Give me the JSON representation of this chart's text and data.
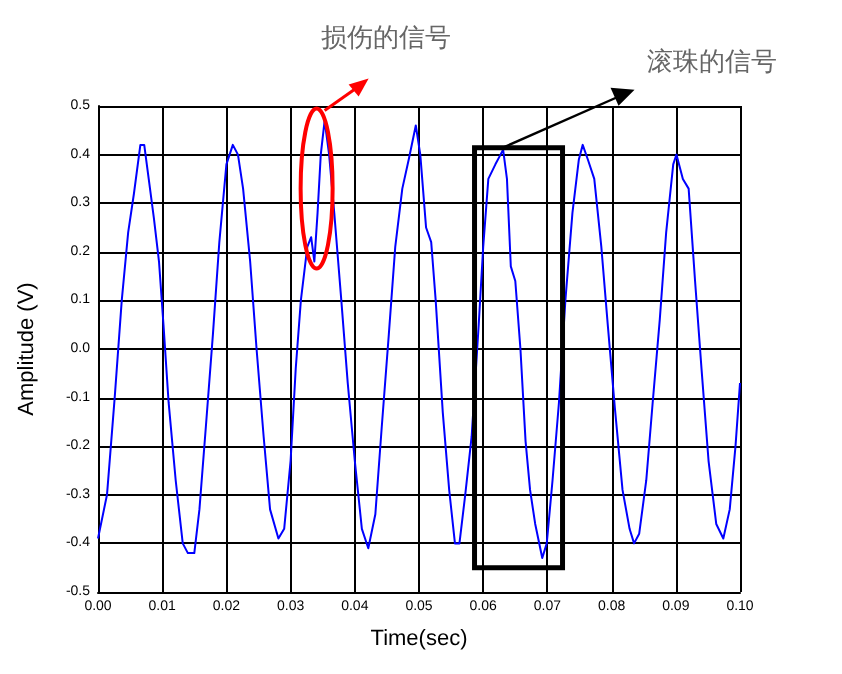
{
  "chart_data": {
    "type": "line",
    "xlabel": "Time(sec)",
    "ylabel": "Amplitude (V)",
    "color": "#0000ff",
    "x": [
      0,
      0.0014,
      0.0026,
      0.0037,
      0.0047,
      0.0056,
      0.0066,
      0.0072,
      0.0079,
      0.0087,
      0.0095,
      0.0102,
      0.011,
      0.0121,
      0.0132,
      0.014,
      0.015,
      0.0158,
      0.0168,
      0.0179,
      0.0189,
      0.02,
      0.021,
      0.0218,
      0.0226,
      0.0237,
      0.0247,
      0.0258,
      0.0268,
      0.0281,
      0.029,
      0.03,
      0.0308,
      0.0316,
      0.0326,
      0.0332,
      0.0337,
      0.0342,
      0.0347,
      0.0353,
      0.036,
      0.0368,
      0.0379,
      0.0389,
      0.04,
      0.0411,
      0.0421,
      0.0432,
      0.0442,
      0.0453,
      0.0463,
      0.0474,
      0.0484,
      0.0495,
      0.0502,
      0.0511,
      0.0519,
      0.0526,
      0.0537,
      0.0547,
      0.0556,
      0.0563,
      0.0572,
      0.0582,
      0.0593,
      0.06,
      0.0608,
      0.0619,
      0.0627,
      0.0631,
      0.0637,
      0.0643,
      0.065,
      0.0658,
      0.0666,
      0.0673,
      0.0681,
      0.0692,
      0.0699,
      0.0708,
      0.0718,
      0.0728,
      0.0739,
      0.0749,
      0.0755,
      0.0763,
      0.0773,
      0.0784,
      0.0794,
      0.0805,
      0.0817,
      0.0828,
      0.0835,
      0.0843,
      0.0854,
      0.0864,
      0.0875,
      0.0885,
      0.0896,
      0.0901,
      0.0911,
      0.092,
      0.093,
      0.094,
      0.0951,
      0.0963,
      0.0974,
      0.0984,
      0.0993,
      0.1
    ],
    "values": [
      -0.39,
      -0.3,
      -0.1,
      0.1,
      0.24,
      0.32,
      0.42,
      0.42,
      0.35,
      0.27,
      0.18,
      0.05,
      -0.11,
      -0.27,
      -0.4,
      -0.42,
      -0.42,
      -0.33,
      -0.16,
      0.03,
      0.22,
      0.38,
      0.42,
      0.4,
      0.33,
      0.18,
      0,
      -0.18,
      -0.33,
      -0.39,
      -0.37,
      -0.23,
      -0.04,
      0.1,
      0.21,
      0.23,
      0.18,
      0.28,
      0.4,
      0.47,
      0.4,
      0.28,
      0.1,
      -0.07,
      -0.23,
      -0.37,
      -0.41,
      -0.34,
      -0.16,
      0.03,
      0.21,
      0.33,
      0.39,
      0.46,
      0.4,
      0.25,
      0.22,
      0.1,
      -0.13,
      -0.29,
      -0.4,
      -0.4,
      -0.3,
      -0.18,
      0.05,
      0.21,
      0.35,
      0.38,
      0.4,
      0.41,
      0.35,
      0.17,
      0.14,
      0,
      -0.19,
      -0.29,
      -0.36,
      -0.43,
      -0.4,
      -0.27,
      -0.11,
      0.1,
      0.28,
      0.39,
      0.42,
      0.39,
      0.35,
      0.21,
      0.05,
      -0.12,
      -0.29,
      -0.37,
      -0.4,
      -0.38,
      -0.27,
      -0.11,
      0.06,
      0.24,
      0.38,
      0.4,
      0.35,
      0.33,
      0.14,
      -0.04,
      -0.23,
      -0.36,
      -0.39,
      -0.33,
      -0.2,
      -0.07
    ],
    "xlim": [
      0,
      0.1
    ],
    "xticks": [
      {
        "value": 0,
        "label": "0.00"
      },
      0.01,
      0.02,
      0.03,
      0.04,
      0.05,
      0.06,
      0.07,
      0.08,
      0.09,
      {
        "value": 0.1,
        "label": "0.10"
      }
    ],
    "ylim": [
      -0.5,
      0.5
    ],
    "yticks": [
      -0.5,
      -0.4,
      -0.3,
      -0.2,
      -0.1,
      {
        "value": 0,
        "label": "0.0"
      },
      0.1,
      0.2,
      0.3,
      0.4,
      0.5
    ],
    "grid": true,
    "marker": "none",
    "line_style": "solid",
    "annotations": [
      {
        "text": "损伤的信号",
        "x": 0.0353,
        "y": 0.47
      },
      {
        "text": "滚珠的信号",
        "x": 0.0627,
        "y": 0.41
      }
    ]
  }
}
